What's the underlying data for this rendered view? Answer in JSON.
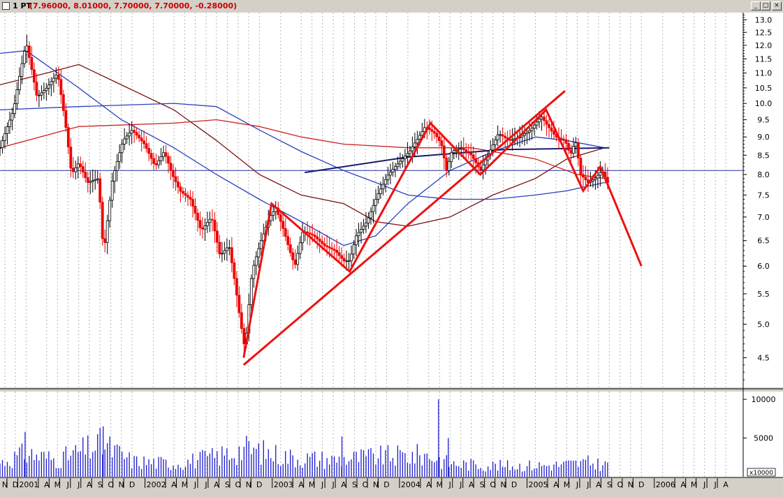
{
  "window": {
    "series_name": "1 PT",
    "ohlc_readout": "(7.96000, 8.01000, 7.70000, 7.70000, -0.28000)",
    "buttons": {
      "minimize": "_",
      "maximize": "□",
      "close": "×"
    }
  },
  "chart_data": {
    "type": "line",
    "title": "",
    "subtitle": "",
    "xlabel": "",
    "ylabel": "",
    "price_scale": "log",
    "ylim": [
      4.1,
      13.3
    ],
    "y_ticks": [
      "13.0",
      "12.5",
      "12.0",
      "11.5",
      "11.0",
      "10.5",
      "10.0",
      "9.5",
      "9.0",
      "8.5",
      "8.0",
      "7.5",
      "7.0",
      "6.5",
      "6.0",
      "5.5",
      "5.0",
      "4.5"
    ],
    "volume_ticks": [
      "10000",
      "5000"
    ],
    "volume_multiplier": "x10000",
    "volume_range": [
      0,
      11000
    ],
    "grid": true,
    "legend": "none",
    "x_range": [
      "2000-11-01",
      "2006-09-01"
    ],
    "month_labels": [
      {
        "date": "2000-11-15",
        "label": "N"
      },
      {
        "date": "2000-12-15",
        "label": "D"
      },
      {
        "date": "2001-01-15",
        "label": "2001"
      },
      {
        "date": "2001-03-15",
        "label": "A"
      },
      {
        "date": "2001-04-15",
        "label": "M"
      },
      {
        "date": "2001-05-15",
        "label": "J"
      },
      {
        "date": "2001-06-15",
        "label": "J"
      },
      {
        "date": "2001-07-15",
        "label": "A"
      },
      {
        "date": "2001-08-15",
        "label": "S"
      },
      {
        "date": "2001-09-15",
        "label": "O"
      },
      {
        "date": "2001-10-15",
        "label": "N"
      },
      {
        "date": "2001-11-15",
        "label": "D"
      },
      {
        "date": "2002-01-15",
        "label": "2002"
      },
      {
        "date": "2002-03-15",
        "label": "A"
      },
      {
        "date": "2002-04-15",
        "label": "M"
      },
      {
        "date": "2002-05-15",
        "label": "J"
      },
      {
        "date": "2002-06-15",
        "label": "J"
      },
      {
        "date": "2002-07-15",
        "label": "A"
      },
      {
        "date": "2002-08-15",
        "label": "S"
      },
      {
        "date": "2002-09-15",
        "label": "O"
      },
      {
        "date": "2002-10-15",
        "label": "N"
      },
      {
        "date": "2002-11-15",
        "label": "D"
      },
      {
        "date": "2003-01-15",
        "label": "2003"
      },
      {
        "date": "2003-03-15",
        "label": "A"
      },
      {
        "date": "2003-04-15",
        "label": "M"
      },
      {
        "date": "2003-05-15",
        "label": "J"
      },
      {
        "date": "2003-06-15",
        "label": "J"
      },
      {
        "date": "2003-07-15",
        "label": "A"
      },
      {
        "date": "2003-08-15",
        "label": "S"
      },
      {
        "date": "2003-09-15",
        "label": "O"
      },
      {
        "date": "2003-10-15",
        "label": "N"
      },
      {
        "date": "2003-11-15",
        "label": "D"
      },
      {
        "date": "2004-01-15",
        "label": "2004"
      },
      {
        "date": "2004-03-15",
        "label": "A"
      },
      {
        "date": "2004-04-15",
        "label": "M"
      },
      {
        "date": "2004-05-15",
        "label": "J"
      },
      {
        "date": "2004-06-15",
        "label": "J"
      },
      {
        "date": "2004-07-15",
        "label": "A"
      },
      {
        "date": "2004-08-15",
        "label": "S"
      },
      {
        "date": "2004-09-15",
        "label": "O"
      },
      {
        "date": "2004-10-15",
        "label": "N"
      },
      {
        "date": "2004-11-15",
        "label": "D"
      },
      {
        "date": "2005-01-15",
        "label": "2005"
      },
      {
        "date": "2005-03-15",
        "label": "A"
      },
      {
        "date": "2005-04-15",
        "label": "M"
      },
      {
        "date": "2005-05-15",
        "label": "J"
      },
      {
        "date": "2005-06-15",
        "label": "J"
      },
      {
        "date": "2005-07-15",
        "label": "A"
      },
      {
        "date": "2005-08-15",
        "label": "S"
      },
      {
        "date": "2005-09-15",
        "label": "O"
      },
      {
        "date": "2005-10-15",
        "label": "N"
      },
      {
        "date": "2005-11-15",
        "label": "D"
      },
      {
        "date": "2006-01-15",
        "label": "2006"
      },
      {
        "date": "2006-03-15",
        "label": "A"
      },
      {
        "date": "2006-04-15",
        "label": "M"
      },
      {
        "date": "2006-05-15",
        "label": "J"
      },
      {
        "date": "2006-06-15",
        "label": "J"
      },
      {
        "date": "2006-07-15",
        "label": "A"
      }
    ],
    "price_path": [
      [
        "2000-11-01",
        8.7
      ],
      [
        "2000-12-10",
        9.8
      ],
      [
        "2001-01-15",
        12.1
      ],
      [
        "2001-02-15",
        10.2
      ],
      [
        "2001-03-15",
        10.5
      ],
      [
        "2001-04-15",
        11.0
      ],
      [
        "2001-05-10",
        9.2
      ],
      [
        "2001-05-25",
        8.0
      ],
      [
        "2001-06-15",
        8.3
      ],
      [
        "2001-07-10",
        7.8
      ],
      [
        "2001-08-10",
        7.9
      ],
      [
        "2001-08-25",
        6.2
      ],
      [
        "2001-09-20",
        7.9
      ],
      [
        "2001-10-20",
        8.9
      ],
      [
        "2001-11-15",
        9.2
      ],
      [
        "2001-12-20",
        8.8
      ],
      [
        "2002-01-20",
        8.2
      ],
      [
        "2002-02-15",
        8.6
      ],
      [
        "2002-03-10",
        8.0
      ],
      [
        "2002-04-01",
        7.6
      ],
      [
        "2002-05-01",
        7.4
      ],
      [
        "2002-06-01",
        6.7
      ],
      [
        "2002-07-01",
        7.0
      ],
      [
        "2002-07-25",
        6.2
      ],
      [
        "2002-08-20",
        6.4
      ],
      [
        "2002-09-20",
        5.1
      ],
      [
        "2002-10-05",
        4.6
      ],
      [
        "2002-10-25",
        5.9
      ],
      [
        "2002-11-20",
        6.5
      ],
      [
        "2002-12-15",
        7.0
      ],
      [
        "2003-01-01",
        7.2
      ],
      [
        "2003-01-20",
        6.8
      ],
      [
        "2003-02-10",
        6.3
      ],
      [
        "2003-02-25",
        6.0
      ],
      [
        "2003-03-20",
        6.7
      ],
      [
        "2003-04-20",
        6.6
      ],
      [
        "2003-05-20",
        6.4
      ],
      [
        "2003-06-20",
        6.3
      ],
      [
        "2003-07-15",
        6.1
      ],
      [
        "2003-08-01",
        6.1
      ],
      [
        "2003-08-20",
        6.6
      ],
      [
        "2003-09-20",
        6.9
      ],
      [
        "2003-10-20",
        7.5
      ],
      [
        "2003-11-20",
        8.0
      ],
      [
        "2003-12-20",
        8.3
      ],
      [
        "2004-01-20",
        8.6
      ],
      [
        "2004-02-15",
        9.0
      ],
      [
        "2004-03-05",
        9.3
      ],
      [
        "2004-04-01",
        9.1
      ],
      [
        "2004-04-20",
        8.8
      ],
      [
        "2004-05-05",
        8.1
      ],
      [
        "2004-05-20",
        8.6
      ],
      [
        "2004-06-15",
        8.7
      ],
      [
        "2004-07-15",
        8.5
      ],
      [
        "2004-08-10",
        8.1
      ],
      [
        "2004-09-01",
        8.5
      ],
      [
        "2004-10-01",
        9.1
      ],
      [
        "2004-11-01",
        8.9
      ],
      [
        "2004-12-01",
        9.0
      ],
      [
        "2005-01-01",
        9.2
      ],
      [
        "2005-02-01",
        9.6
      ],
      [
        "2005-02-20",
        9.3
      ],
      [
        "2005-03-15",
        9.0
      ],
      [
        "2005-04-10",
        8.9
      ],
      [
        "2005-04-25",
        8.5
      ],
      [
        "2005-05-10",
        8.9
      ],
      [
        "2005-05-25",
        8.0
      ],
      [
        "2005-06-15",
        7.8
      ],
      [
        "2005-07-05",
        7.9
      ],
      [
        "2005-07-25",
        8.1
      ],
      [
        "2005-08-15",
        7.7
      ]
    ],
    "volume_path": [
      [
        "2000-11-01",
        1800
      ],
      [
        "2001-01-15",
        3000
      ],
      [
        "2001-04-15",
        2200
      ],
      [
        "2001-08-20",
        4200
      ],
      [
        "2001-11-15",
        2000
      ],
      [
        "2002-03-15",
        1700
      ],
      [
        "2002-07-15",
        2600
      ],
      [
        "2002-10-05",
        3600
      ],
      [
        "2003-02-15",
        2500
      ],
      [
        "2003-06-15",
        2200
      ],
      [
        "2003-10-15",
        2600
      ],
      [
        "2004-03-15",
        2800
      ],
      [
        "2004-05-15",
        1700
      ],
      [
        "2004-10-15",
        1400
      ],
      [
        "2005-03-15",
        1500
      ],
      [
        "2005-06-15",
        1800
      ],
      [
        "2005-08-15",
        1500
      ]
    ],
    "volume_spikes": [
      [
        "2004-04-12",
        10000
      ],
      [
        "2004-05-10",
        5000
      ],
      [
        "2001-08-24",
        6500
      ],
      [
        "2001-01-12",
        5800
      ],
      [
        "2003-07-10",
        5200
      ]
    ],
    "indicator_lines": [
      {
        "color": "#2a3fbf",
        "points": [
          [
            "2000-11-01",
            11.7
          ],
          [
            "2001-01-15",
            11.8
          ],
          [
            "2001-06-15",
            10.5
          ],
          [
            "2001-10-15",
            9.5
          ],
          [
            "2002-03-15",
            8.7
          ],
          [
            "2002-07-15",
            8.0
          ],
          [
            "2002-11-15",
            7.4
          ],
          [
            "2003-03-15",
            6.9
          ],
          [
            "2003-07-15",
            6.4
          ],
          [
            "2003-10-15",
            6.6
          ],
          [
            "2004-01-15",
            7.3
          ],
          [
            "2004-05-15",
            8.1
          ],
          [
            "2004-09-15",
            8.6
          ],
          [
            "2005-01-15",
            9.0
          ],
          [
            "2005-04-15",
            8.9
          ],
          [
            "2005-08-01",
            8.7
          ]
        ]
      },
      {
        "color": "#7a1010",
        "points": [
          [
            "2000-11-01",
            10.6
          ],
          [
            "2001-03-15",
            11.0
          ],
          [
            "2001-06-15",
            11.3
          ],
          [
            "2001-10-15",
            10.6
          ],
          [
            "2002-03-15",
            9.8
          ],
          [
            "2002-07-15",
            8.9
          ],
          [
            "2002-11-15",
            8.0
          ],
          [
            "2003-03-15",
            7.5
          ],
          [
            "2003-07-15",
            7.3
          ],
          [
            "2003-10-15",
            6.9
          ],
          [
            "2004-01-15",
            6.8
          ],
          [
            "2004-05-15",
            7.0
          ],
          [
            "2004-09-15",
            7.5
          ],
          [
            "2005-01-15",
            7.9
          ],
          [
            "2005-04-15",
            8.4
          ],
          [
            "2005-08-01",
            8.7
          ]
        ]
      },
      {
        "color": "#2a3fbf",
        "points": [
          [
            "2000-11-01",
            9.8
          ],
          [
            "2001-06-15",
            9.9
          ],
          [
            "2002-03-15",
            10.0
          ],
          [
            "2002-07-15",
            9.9
          ],
          [
            "2002-11-15",
            9.2
          ],
          [
            "2003-03-15",
            8.6
          ],
          [
            "2003-07-15",
            8.1
          ],
          [
            "2003-10-15",
            7.8
          ],
          [
            "2004-01-15",
            7.5
          ],
          [
            "2004-05-15",
            7.4
          ],
          [
            "2004-09-15",
            7.4
          ],
          [
            "2005-01-15",
            7.5
          ],
          [
            "2005-04-15",
            7.6
          ],
          [
            "2005-08-01",
            7.8
          ]
        ]
      },
      {
        "color": "#cc2020",
        "points": [
          [
            "2000-11-01",
            8.7
          ],
          [
            "2001-06-15",
            9.3
          ],
          [
            "2002-03-15",
            9.4
          ],
          [
            "2002-07-15",
            9.5
          ],
          [
            "2002-11-15",
            9.3
          ],
          [
            "2003-03-15",
            9.0
          ],
          [
            "2003-07-15",
            8.8
          ],
          [
            "2004-01-15",
            8.7
          ],
          [
            "2004-07-15",
            8.7
          ],
          [
            "2005-01-15",
            8.4
          ],
          [
            "2005-05-15",
            8.0
          ],
          [
            "2005-08-01",
            7.9
          ]
        ]
      },
      {
        "color": "#1a1a6a",
        "width": 2,
        "points": [
          [
            "2003-03-25",
            8.05
          ],
          [
            "2004-01-15",
            8.45
          ],
          [
            "2004-10-15",
            8.65
          ],
          [
            "2005-08-15",
            8.7
          ]
        ]
      }
    ],
    "annotation_lines": [
      {
        "color": "#ee1111",
        "width": 3,
        "points": [
          [
            "2002-10-01",
            4.4
          ],
          [
            "2005-04-10",
            10.4
          ]
        ]
      },
      {
        "color": "#ee1111",
        "width": 3,
        "points": [
          [
            "2002-10-01",
            4.5
          ],
          [
            "2002-12-20",
            7.3
          ],
          [
            "2003-08-01",
            5.9
          ],
          [
            "2004-03-20",
            9.4
          ],
          [
            "2004-08-10",
            8.0
          ],
          [
            "2005-02-15",
            9.8
          ],
          [
            "2005-06-01",
            7.6
          ],
          [
            "2005-07-20",
            8.2
          ],
          [
            "2005-11-15",
            6.0
          ]
        ]
      }
    ],
    "reference_line": {
      "color": "#2030a0",
      "value": 8.1
    }
  }
}
